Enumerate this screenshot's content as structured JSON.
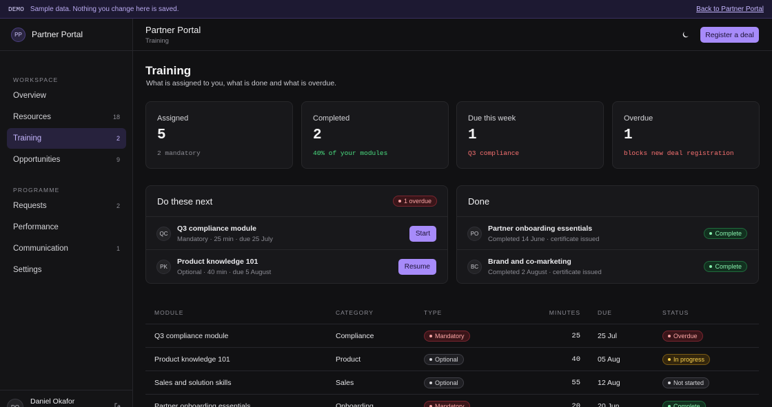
{
  "banner": {
    "tag": "DEMO",
    "message": "Sample data. Nothing you change here is saved.",
    "link": "Back to Partner Portal"
  },
  "sidebar": {
    "brand_initials": "PP",
    "brand": "Partner Portal",
    "sections": [
      {
        "title": "WORKSPACE",
        "items": [
          {
            "label": "Overview"
          },
          {
            "label": "Resources",
            "count": 18
          },
          {
            "label": "Training",
            "count": 2
          },
          {
            "label": "Opportunities",
            "count": 9
          }
        ]
      },
      {
        "title": "PROGRAMME",
        "items": [
          {
            "label": "Requests",
            "count": 2
          },
          {
            "label": "Performance"
          },
          {
            "label": "Communication",
            "count": 1
          },
          {
            "label": "Settings"
          }
        ]
      }
    ],
    "user": {
      "initials": "DO",
      "name": "Daniel Okafor"
    }
  },
  "header": {
    "title": "Partner Portal",
    "subtitle": "Training",
    "button": "Register a deal"
  },
  "page": {
    "title": "Training",
    "subtitle": "What is assigned to you, what is done and what is overdue."
  },
  "stats": [
    {
      "label": "Assigned",
      "value": 5,
      "note": "2 mandatory"
    },
    {
      "label": "Completed",
      "value": 2,
      "note": "40% of your modules"
    },
    {
      "label": "Due this week",
      "value": 1,
      "note": "Q3 compliance"
    },
    {
      "label": "Overdue",
      "value": 1,
      "note": "blocks new deal registration"
    }
  ],
  "next": {
    "title": "Do these next",
    "badge": "1 overdue",
    "items": [
      {
        "initials": "QC",
        "title": "Q3 compliance module",
        "meta": "Mandatory · 25 min · due 25 July",
        "action": "Start"
      },
      {
        "initials": "PK",
        "title": "Product knowledge 101",
        "meta": "Optional · 40 min · due 5 August",
        "action": "Resume"
      }
    ]
  },
  "done": {
    "title": "Done",
    "items": [
      {
        "initials": "PO",
        "title": "Partner onboarding essentials",
        "meta": "Completed 14 June · certificate issued",
        "status": "Complete"
      },
      {
        "initials": "BC",
        "title": "Brand and co-marketing",
        "meta": "Completed 2 August · certificate issued",
        "status": "Complete"
      }
    ]
  },
  "table": {
    "columns": [
      "MODULE",
      "CATEGORY",
      "TYPE",
      "MINUTES",
      "DUE",
      "STATUS"
    ],
    "rows": [
      [
        "Q3 compliance module",
        "Compliance",
        "Mandatory",
        25,
        "25 Jul",
        "Overdue"
      ],
      [
        "Product knowledge 101",
        "Product",
        "Optional",
        40,
        "05 Aug",
        "In progress"
      ],
      [
        "Sales and solution skills",
        "Sales",
        "Optional",
        55,
        "12 Aug",
        "Not started"
      ],
      [
        "Partner onboarding essentials",
        "Onboarding",
        "Mandatory",
        20,
        "20 Jun",
        "Complete"
      ]
    ]
  }
}
